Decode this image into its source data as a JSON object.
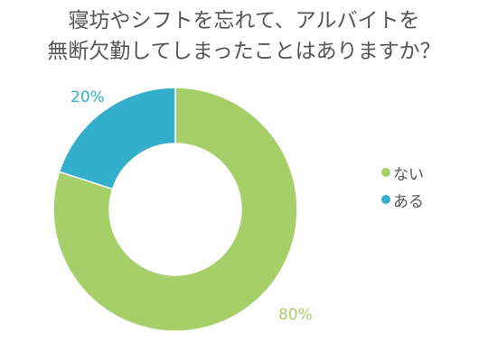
{
  "chart_data": {
    "type": "pie",
    "title_lines": [
      "寝坊やシフトを忘れて、アルバイトを",
      "無断欠勤してしまったことはありますか？"
    ],
    "categories": [
      "ない",
      "ある"
    ],
    "values": [
      80,
      20
    ],
    "value_labels": [
      "80%",
      "20%"
    ],
    "colors": [
      "#a6cf69",
      "#33aecb"
    ],
    "donut": true,
    "legend_position": "right"
  }
}
